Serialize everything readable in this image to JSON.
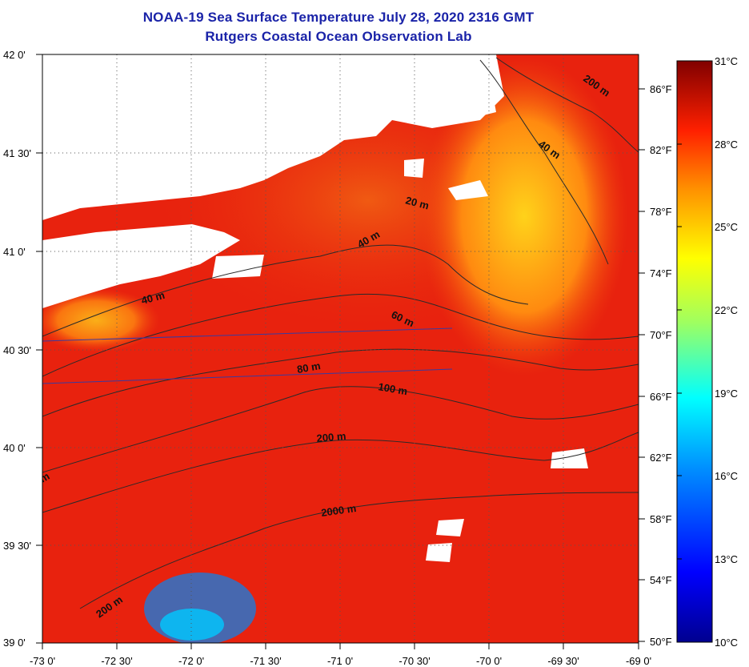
{
  "header": {
    "title": "NOAA-19 Sea Surface Temperature July 28, 2020 2316 GMT",
    "subtitle": "Rutgers Coastal Ocean Observation Lab"
  },
  "map": {
    "lat_ticks": [
      "42 0'",
      "41 30'",
      "41 0'",
      "40 30'",
      "40 0'",
      "39 30'",
      "39 0'"
    ],
    "lon_ticks": [
      "-73 0'",
      "-72 30'",
      "-72 0'",
      "-71 30'",
      "-71 0'",
      "-70 30'",
      "-70 0'",
      "-69 30'",
      "-69 0'"
    ],
    "isobath_labels": [
      "200 m",
      "40 m",
      "20 m",
      "40 m",
      "40 m",
      "60 m",
      "80 m",
      "100 m",
      "200 m",
      "2000 m",
      "200 m",
      "m"
    ],
    "colors": {
      "ocean_warm": "#e8220e",
      "ocean_hot": "#ee4410",
      "land": "#ffffff",
      "isobath": "#2a2a2a",
      "track": "#3a3aa0"
    }
  },
  "colorbar": {
    "celsius_labels": [
      "31°C",
      "28°C",
      "25°C",
      "22°C",
      "19°C",
      "16°C",
      "13°C",
      "10°C"
    ],
    "fahrenheit_labels": [
      "86°F",
      "82°F",
      "78°F",
      "74°F",
      "70°F",
      "66°F",
      "62°F",
      "58°F",
      "54°F",
      "50°F"
    ],
    "celsius_range": [
      10,
      31
    ]
  }
}
